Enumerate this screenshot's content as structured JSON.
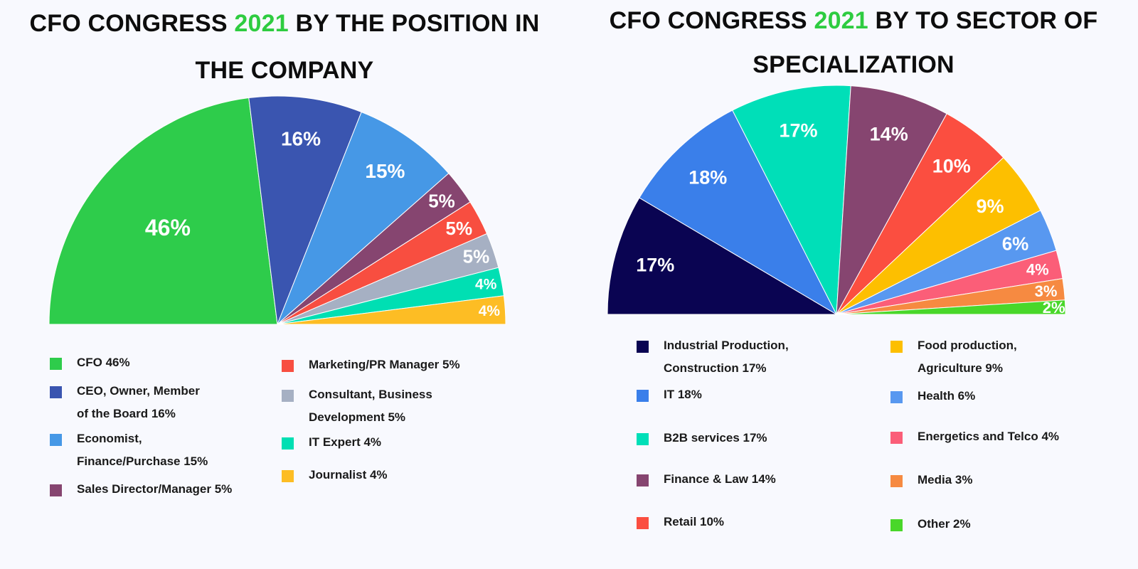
{
  "colors": {
    "title_accent": "#2ecc40"
  },
  "chart_data": [
    {
      "type": "pie",
      "title": {
        "before": "CFO CONGRESS ",
        "year": "2021",
        "after": " BY THE POSITION IN THE COMPANY"
      },
      "slices": [
        {
          "label": "CFO 46%",
          "value": 46,
          "display": "46%",
          "color": "#2ecc4b"
        },
        {
          "label": "CEO, Owner, Member\n of the Board 16%",
          "value": 16,
          "display": "16%",
          "color": "#3a55b0"
        },
        {
          "label": "Economist,\nFinance/Purchase 15%",
          "value": 15,
          "display": "15%",
          "color": "#4698e6"
        },
        {
          "label": "Sales Director/Manager 5%",
          "value": 5,
          "display": "5%",
          "color": "#864570"
        },
        {
          "label": "Marketing/PR Manager 5%",
          "value": 5,
          "display": "5%",
          "color": "#f84e40"
        },
        {
          "label": "Consultant,  Business\nDevelopment 5%",
          "value": 5,
          "display": "5%",
          "color": "#a6b0c3"
        },
        {
          "label": "IT Expert 4%",
          "value": 4,
          "display": "4%",
          "color": "#00dfb3"
        },
        {
          "label": "Journalist 4%",
          "value": 4,
          "display": "4%",
          "color": "#fdbd24"
        }
      ]
    },
    {
      "type": "pie",
      "title": {
        "before": "CFO CONGRESS ",
        "year": "2021",
        "after": " BY TO SECTOR OF SPECIALIZATION"
      },
      "slices": [
        {
          "label": "Industrial Production,\nConstruction 17%",
          "value": 17,
          "display": "17%",
          "color": "#0a0452"
        },
        {
          "label": "IT 18%",
          "value": 18,
          "display": "18%",
          "color": "#3a7fea"
        },
        {
          "label": "B2B services 17%",
          "value": 17,
          "display": "17%",
          "color": "#00dfb8"
        },
        {
          "label": "Finance & Law 14%",
          "value": 14,
          "display": "14%",
          "color": "#864570"
        },
        {
          "label": "Retail 10%",
          "value": 10,
          "display": "10%",
          "color": "#fb4e40"
        },
        {
          "label": "Food production,\nAgriculture 9%",
          "value": 9,
          "display": "9%",
          "color": "#fdbf00"
        },
        {
          "label": "Health 6%",
          "value": 6,
          "display": "6%",
          "color": "#5898f0"
        },
        {
          "label": "Energetics and Telco 4%",
          "value": 4,
          "display": "4%",
          "color": "#fb5e78"
        },
        {
          "label": "Media 3%",
          "value": 3,
          "display": "3%",
          "color": "#f68a41"
        },
        {
          "label": "Other 2%",
          "value": 2,
          "display": "2%",
          "color": "#49d72a"
        }
      ]
    }
  ]
}
